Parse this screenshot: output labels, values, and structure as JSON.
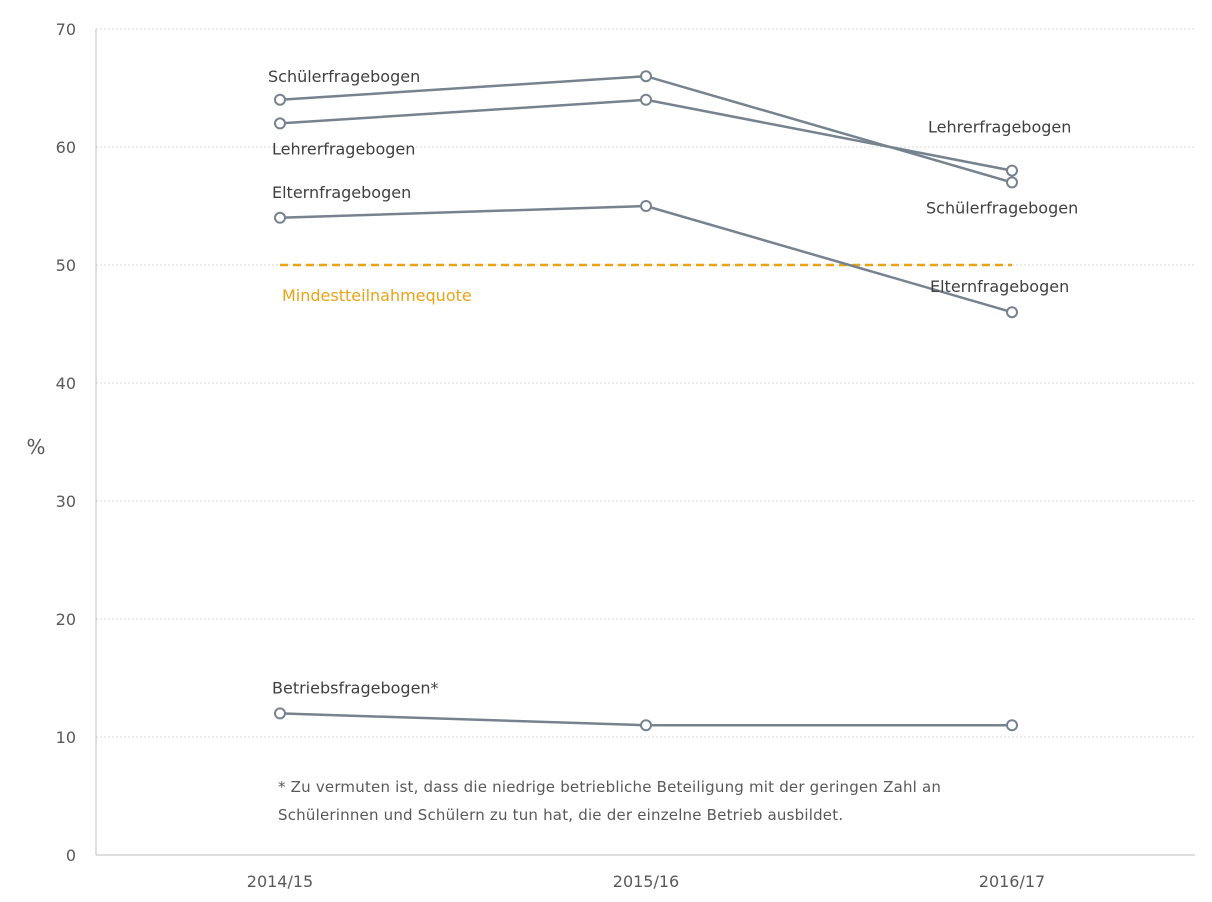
{
  "chart_data": {
    "type": "line",
    "categories": [
      "2014/15",
      "2015/16",
      "2016/17"
    ],
    "ylabel": "%",
    "ylim": [
      0,
      70
    ],
    "yticks": [
      0,
      10,
      20,
      30,
      40,
      50,
      60,
      70
    ],
    "grid": true,
    "series": [
      {
        "name": "Schülerfragebogen",
        "values": [
          64,
          66,
          57
        ],
        "end_label": "Schülerfragebogen"
      },
      {
        "name": "Lehrerfragebogen",
        "values": [
          62,
          64,
          58
        ],
        "end_label": "Lehrerfragebogen"
      },
      {
        "name": "Elternfragebogen",
        "values": [
          54,
          55,
          46
        ],
        "end_label": "Elternfragebogen"
      },
      {
        "name": "Betriebsfragebogen*",
        "values": [
          12,
          11,
          11
        ],
        "end_label": ""
      }
    ],
    "reference_line": {
      "label": "Mindestteilnahmequote",
      "value": 50,
      "color": "#e8a317"
    },
    "series_color": "#76838f",
    "footnote": [
      "* Zu vermuten ist, dass die niedrige betriebliche Beteiligung mit der geringen Zahl an",
      "Schülerinnen und Schülern zu tun hat, die der einzelne Betrieb ausbildet."
    ]
  }
}
